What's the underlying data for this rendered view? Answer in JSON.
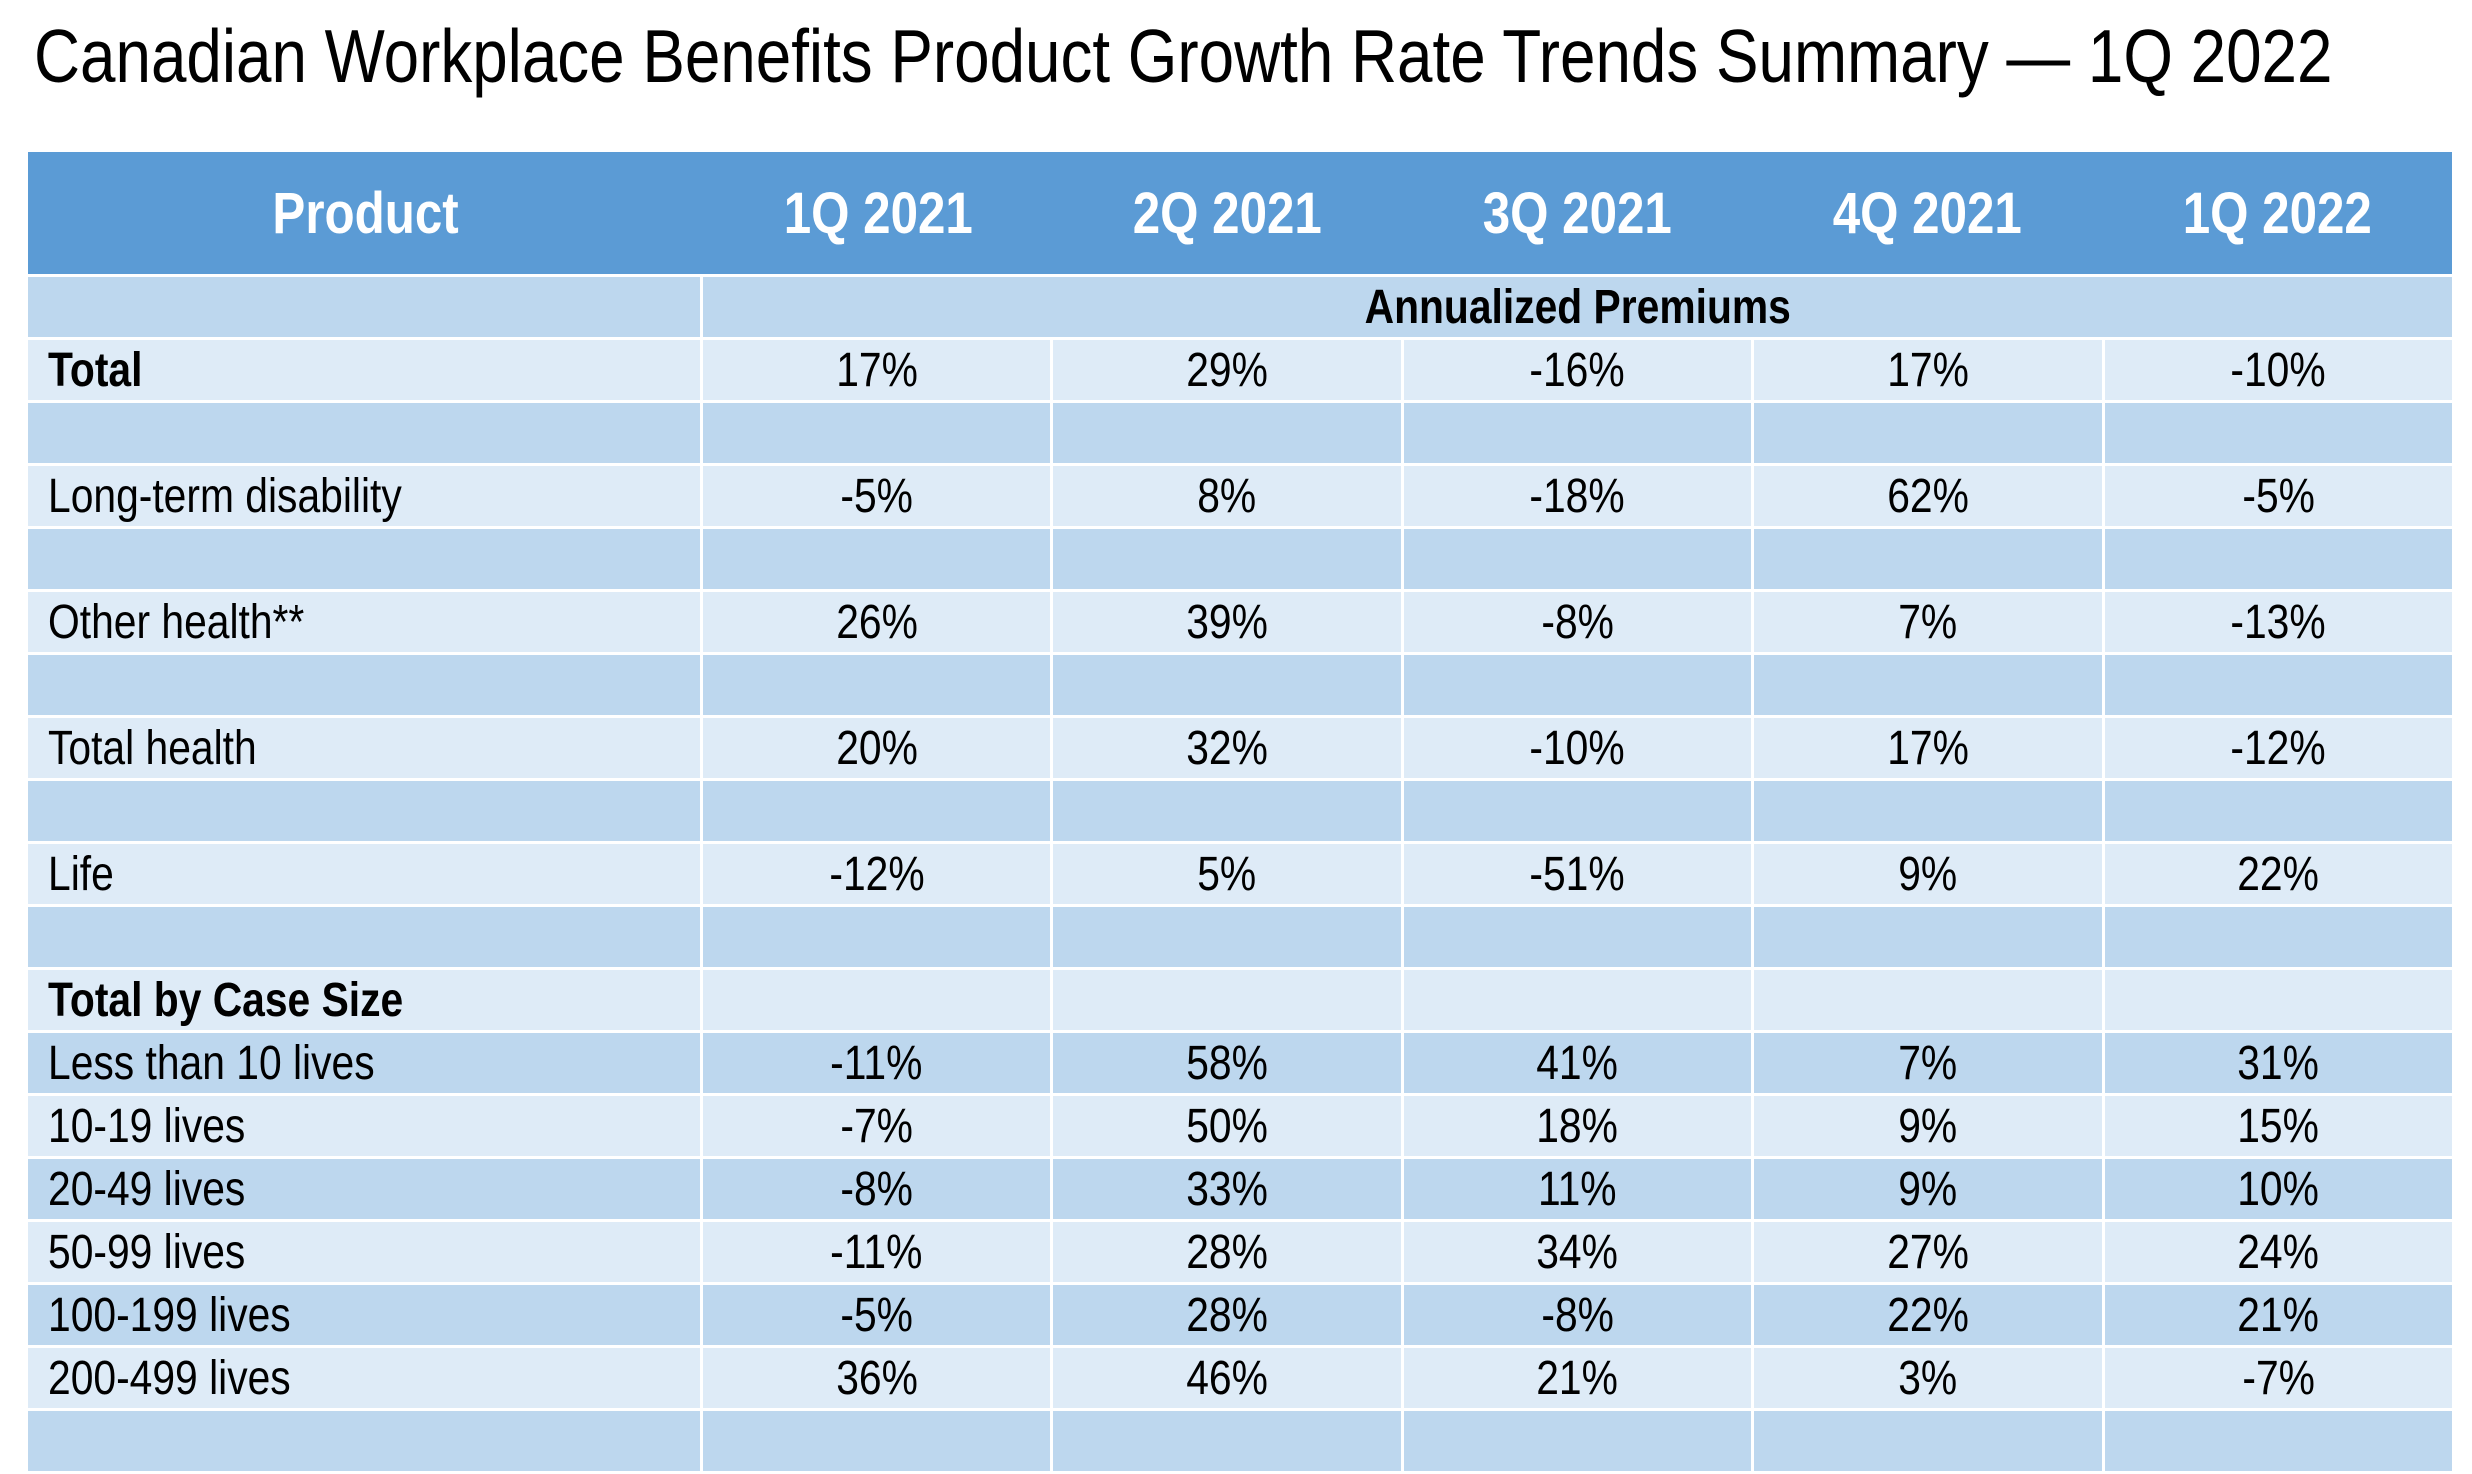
{
  "title": "Canadian Workplace Benefits Product Growth Rate Trends Summary — 1Q 2022",
  "colors": {
    "header_bg": "#5B9BD5",
    "header_text": "#FFFFFF",
    "band_light": "#DEEBF7",
    "band_dark": "#BDD7EE",
    "gridline": "#FFFFFF",
    "text": "#000000",
    "page_bg": "#FFFFFF"
  },
  "chart_data": {
    "type": "table",
    "title": "Canadian Workplace Benefits Product Growth Rate Trends Summary — 1Q 2022",
    "columns": [
      "Product",
      "1Q 2021",
      "2Q 2021",
      "3Q 2021",
      "4Q 2021",
      "1Q 2022"
    ],
    "section_banner": "Annualized Premiums",
    "rows": [
      {
        "type": "banner",
        "label": "",
        "banner": "Annualized Premiums",
        "band": "dark"
      },
      {
        "type": "data",
        "label": "Total",
        "bold": true,
        "band": "light",
        "values": [
          "17%",
          "29%",
          "-16%",
          "17%",
          "-10%"
        ]
      },
      {
        "type": "data",
        "label": "",
        "band": "dark",
        "values": [
          "",
          "",
          "",
          "",
          ""
        ]
      },
      {
        "type": "data",
        "label": "Long-term disability",
        "band": "light",
        "values": [
          "-5%",
          "8%",
          "-18%",
          "62%",
          "-5%"
        ]
      },
      {
        "type": "data",
        "label": "",
        "band": "dark",
        "values": [
          "",
          "",
          "",
          "",
          ""
        ]
      },
      {
        "type": "data",
        "label": "Other health**",
        "band": "light",
        "values": [
          "26%",
          "39%",
          "-8%",
          "7%",
          "-13%"
        ]
      },
      {
        "type": "data",
        "label": "",
        "band": "dark",
        "values": [
          "",
          "",
          "",
          "",
          ""
        ]
      },
      {
        "type": "data",
        "label": "Total health",
        "band": "light",
        "values": [
          "20%",
          "32%",
          "-10%",
          "17%",
          "-12%"
        ]
      },
      {
        "type": "data",
        "label": "",
        "band": "dark",
        "values": [
          "",
          "",
          "",
          "",
          ""
        ]
      },
      {
        "type": "data",
        "label": "Life",
        "band": "light",
        "values": [
          "-12%",
          "5%",
          "-51%",
          "9%",
          "22%"
        ]
      },
      {
        "type": "data",
        "label": "",
        "band": "dark",
        "values": [
          "",
          "",
          "",
          "",
          ""
        ]
      },
      {
        "type": "data",
        "label": "Total by Case Size",
        "bold": true,
        "band": "light",
        "values": [
          "",
          "",
          "",
          "",
          ""
        ]
      },
      {
        "type": "data",
        "label": "Less than 10 lives",
        "band": "dark",
        "values": [
          "-11%",
          "58%",
          "41%",
          "7%",
          "31%"
        ]
      },
      {
        "type": "data",
        "label": "10-19 lives",
        "band": "light",
        "values": [
          "-7%",
          "50%",
          "18%",
          "9%",
          "15%"
        ]
      },
      {
        "type": "data",
        "label": "20-49 lives",
        "band": "dark",
        "values": [
          "-8%",
          "33%",
          "11%",
          "9%",
          "10%"
        ]
      },
      {
        "type": "data",
        "label": "50-99 lives",
        "band": "light",
        "values": [
          "-11%",
          "28%",
          "34%",
          "27%",
          "24%"
        ]
      },
      {
        "type": "data",
        "label": "100-199 lives",
        "band": "dark",
        "values": [
          "-5%",
          "28%",
          "-8%",
          "22%",
          "21%"
        ]
      },
      {
        "type": "data",
        "label": "200-499 lives",
        "band": "light",
        "values": [
          "36%",
          "46%",
          "21%",
          "3%",
          "-7%"
        ]
      },
      {
        "type": "data",
        "label": "",
        "band": "dark",
        "values": [
          "",
          "",
          "",
          "",
          ""
        ]
      }
    ]
  }
}
